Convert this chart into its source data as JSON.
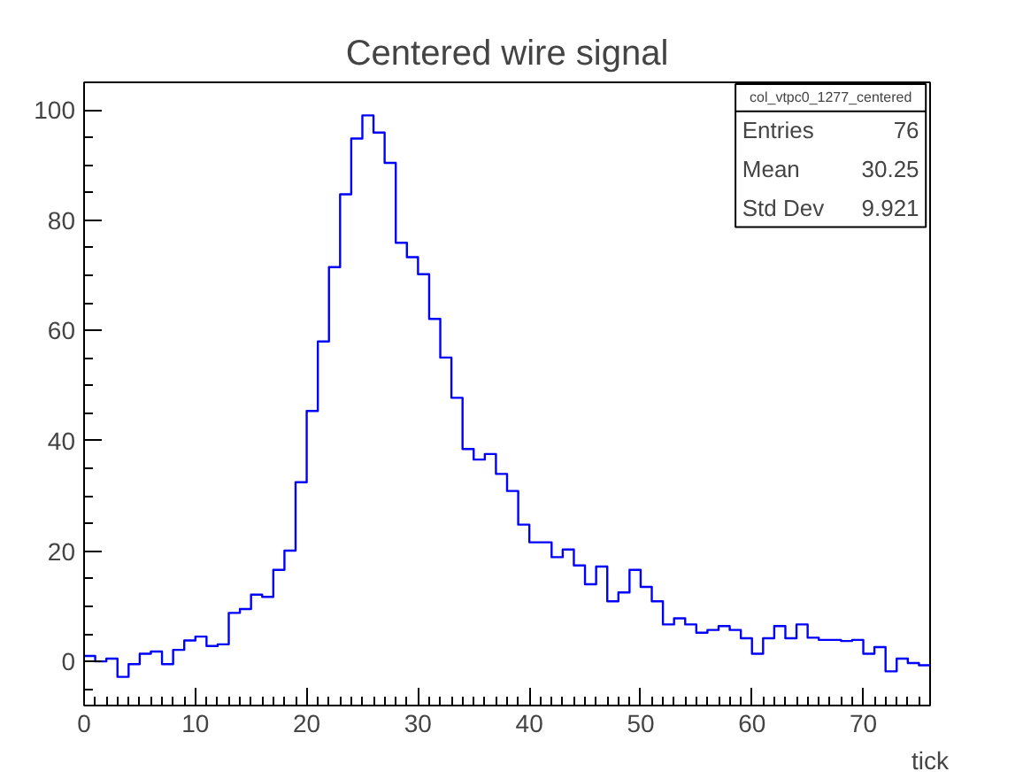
{
  "chart_data": {
    "type": "histogram",
    "title": "Centered wire signal",
    "xlabel": "tick",
    "bins": [
      0,
      1,
      2,
      3,
      4,
      5,
      6,
      7,
      8,
      9,
      10,
      11,
      12,
      13,
      14,
      15,
      16,
      17,
      18,
      19,
      20,
      21,
      22,
      23,
      24,
      25,
      26,
      27,
      28,
      29,
      30,
      31,
      32,
      33,
      34,
      35,
      36,
      37,
      38,
      39,
      40,
      41,
      42,
      43,
      44,
      45,
      46,
      47,
      48,
      49,
      50,
      51,
      52,
      53,
      54,
      55,
      56,
      57,
      58,
      59,
      60,
      61,
      62,
      63,
      64,
      65,
      66,
      67,
      68,
      69,
      70,
      71,
      72,
      73,
      74,
      75,
      76
    ],
    "values": [
      1.0,
      0.0,
      0.5,
      -2.8,
      -0.5,
      1.4,
      1.8,
      -0.5,
      2.1,
      3.8,
      4.5,
      2.8,
      3.1,
      8.8,
      9.5,
      12.1,
      11.7,
      16.6,
      20.1,
      32.5,
      45.4,
      58.0,
      71.5,
      84.7,
      94.8,
      99.0,
      95.9,
      90.4,
      75.9,
      73.3,
      70.2,
      62.1,
      55.1,
      47.8,
      38.5,
      36.6,
      37.6,
      34.0,
      30.9,
      24.8,
      21.6,
      21.6,
      18.9,
      20.3,
      17.4,
      14.0,
      17.2,
      10.9,
      12.5,
      16.6,
      13.5,
      10.9,
      6.7,
      7.8,
      6.7,
      5.2,
      5.7,
      6.4,
      5.7,
      4.2,
      1.4,
      4.2,
      6.4,
      4.2,
      6.7,
      4.3,
      3.9,
      3.9,
      3.7,
      3.9,
      1.4,
      2.6,
      -1.8,
      0.5,
      -0.3,
      -0.7
    ],
    "color": "#0000ff",
    "xlim": [
      0,
      76
    ],
    "ylim": [
      -8,
      105
    ],
    "xticks": [
      0,
      10,
      20,
      30,
      40,
      50,
      60,
      70
    ],
    "yticks": [
      0,
      20,
      40,
      60,
      80,
      100
    ],
    "grid": false,
    "annotations": [
      "col_vtpc0_1277_centered",
      "Entries 76",
      "Mean 30.25",
      "Std Dev 9.921"
    ]
  }
}
